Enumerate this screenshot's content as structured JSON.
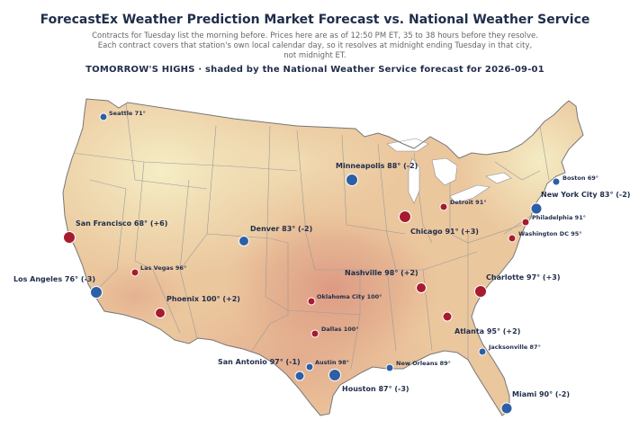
{
  "title": "ForecastEx Weather Prediction Market Forecast vs. National Weather Service",
  "subtitle_lines": [
    "Contracts for Tuesday list the morning before. Prices here are as of 12:50 PM ET, 35 to 38 hours before they resolve.",
    "Each contract covers that station's own local calendar day, so it resolves at midnight ending Tuesday in that city,",
    "not midnight ET."
  ],
  "subheading": "TOMORROW'S HIGHS  ·  shaded by the National Weather Service forecast for 2026-09-01",
  "colors": {
    "warm_marker": "#a61c2e",
    "cool_marker": "#2d5fa6",
    "label": "#1f2d4a",
    "land_cool": "#f3eac0",
    "land_warm": "#e4a585",
    "state_border": "#9a9a9a"
  },
  "cities": [
    {
      "name": "Seattle",
      "label": "Seattle 71°",
      "size": "small",
      "color": "cool"
    },
    {
      "name": "Minneapolis",
      "label": "Minneapolis 88° (-2)",
      "size": "large",
      "color": "cool"
    },
    {
      "name": "Boston",
      "label": "Boston 69°",
      "size": "small",
      "color": "cool"
    },
    {
      "name": "Detroit",
      "label": "Detroit 91°",
      "size": "small",
      "color": "warm"
    },
    {
      "name": "New York City",
      "label": "New York City 83° (-2)",
      "size": "large",
      "color": "cool"
    },
    {
      "name": "San Francisco",
      "label": "San Francisco 68° (+6)",
      "size": "large",
      "color": "warm"
    },
    {
      "name": "Denver",
      "label": "Denver 83° (-2)",
      "size": "large",
      "color": "cool"
    },
    {
      "name": "Chicago",
      "label": "Chicago 91° (+3)",
      "size": "large",
      "color": "warm"
    },
    {
      "name": "Philadelphia",
      "label": "Philadelphia 91°",
      "size": "small",
      "color": "warm"
    },
    {
      "name": "Washington DC",
      "label": "Washington DC 95°",
      "size": "small",
      "color": "warm"
    },
    {
      "name": "Las Vegas",
      "label": "Las Vegas 96°",
      "size": "small",
      "color": "warm"
    },
    {
      "name": "Los Angeles",
      "label": "Los Angeles 76° (-3)",
      "size": "large",
      "color": "cool"
    },
    {
      "name": "Nashville",
      "label": "Nashville 98° (+2)",
      "size": "large",
      "color": "warm"
    },
    {
      "name": "Charlotte",
      "label": "Charlotte 97° (+3)",
      "size": "large",
      "color": "warm"
    },
    {
      "name": "Phoenix",
      "label": "Phoenix 100° (+2)",
      "size": "large",
      "color": "warm"
    },
    {
      "name": "Oklahoma City",
      "label": "Oklahoma City 100°",
      "size": "small",
      "color": "warm"
    },
    {
      "name": "Atlanta",
      "label": "Atlanta 95° (+2)",
      "size": "large",
      "color": "warm"
    },
    {
      "name": "Dallas",
      "label": "Dallas 100°",
      "size": "small",
      "color": "warm"
    },
    {
      "name": "Jacksonville",
      "label": "Jacksonville 87°",
      "size": "small",
      "color": "cool"
    },
    {
      "name": "San Antonio",
      "label": "San Antonio 97° (-1)",
      "size": "large",
      "color": "cool"
    },
    {
      "name": "Austin",
      "label": "Austin 98°",
      "size": "small",
      "color": "cool"
    },
    {
      "name": "New Orleans",
      "label": "New Orleans 89°",
      "size": "small",
      "color": "cool"
    },
    {
      "name": "Houston",
      "label": "Houston 87° (-3)",
      "size": "large",
      "color": "cool"
    },
    {
      "name": "Miami",
      "label": "Miami 90° (-2)",
      "size": "large",
      "color": "cool"
    }
  ]
}
